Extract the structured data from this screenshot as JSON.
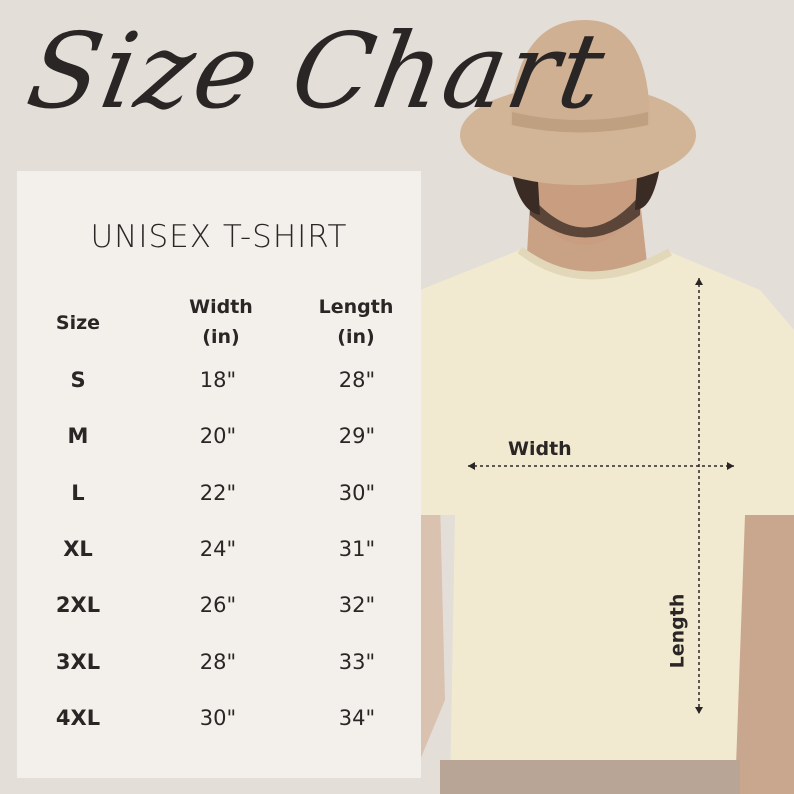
{
  "title": "Size Chart",
  "table": {
    "heading": "UNISEX T-SHIRT",
    "columns": [
      {
        "line1": "Size",
        "line2": ""
      },
      {
        "line1": "Width",
        "line2": "(in)"
      },
      {
        "line1": "Length",
        "line2": "(in)"
      }
    ],
    "rows": [
      {
        "size": "S",
        "width": "18\"",
        "length": "28\""
      },
      {
        "size": "M",
        "width": "20\"",
        "length": "29\""
      },
      {
        "size": "L",
        "width": "22\"",
        "length": "30\""
      },
      {
        "size": "XL",
        "width": "24\"",
        "length": "31\""
      },
      {
        "size": "2XL",
        "width": "26\"",
        "length": "32\""
      },
      {
        "size": "3XL",
        "width": "28\"",
        "length": "33\""
      },
      {
        "size": "4XL",
        "width": "30\"",
        "length": "34\""
      }
    ]
  },
  "diagram": {
    "width_label": "Width",
    "length_label": "Length"
  },
  "colors": {
    "background": "#e4ded8",
    "panel": "#f3f0eb",
    "shirt": "#f2ead0",
    "hat": "#d2b597",
    "text": "#2b2626"
  }
}
